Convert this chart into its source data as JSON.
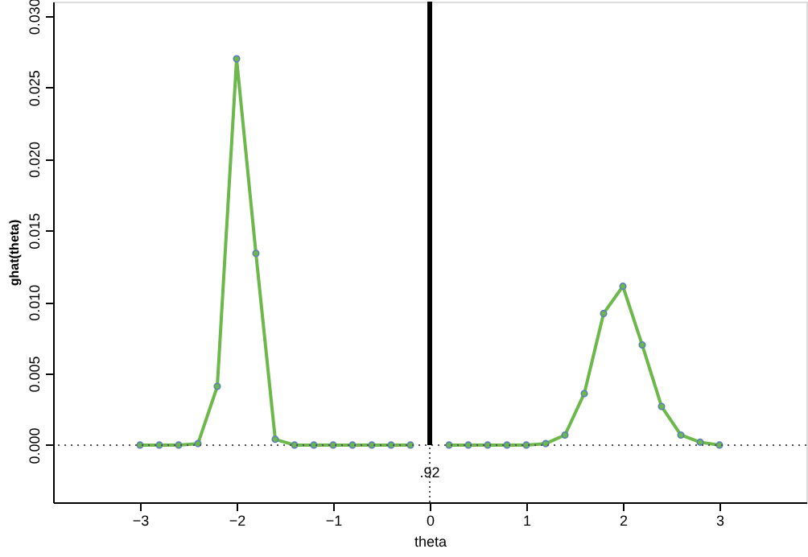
{
  "chart_data": {
    "type": "line",
    "xlabel": "theta",
    "ylabel": "ghat(theta)",
    "series": [
      {
        "color": "#6cb84a",
        "x": [
          -3,
          -2.8,
          -2.6,
          -2.4,
          -2.2,
          -2.0,
          -1.8,
          -1.6,
          -1.4,
          -1.2,
          -1.0,
          -0.8,
          -0.6,
          -0.4,
          -0.2
        ],
        "values": [
          0,
          0,
          0,
          0.0001,
          0.0041,
          0.027,
          0.0134,
          0.0004,
          0,
          0,
          0,
          0,
          0,
          0,
          0
        ]
      },
      {
        "color": "#6cb84a",
        "x": [
          0.2,
          0.4,
          0.6,
          0.8,
          1.0,
          1.2,
          1.4,
          1.6,
          1.8,
          2.0,
          2.2,
          2.4,
          2.6,
          2.8,
          3.0
        ],
        "values": [
          0,
          0,
          0,
          0,
          0,
          0.0001,
          0.0007,
          0.0036,
          0.0092,
          0.0111,
          0.007,
          0.0027,
          0.0007,
          0.0002,
          0
        ]
      }
    ],
    "marker": "circle",
    "line_style": "solid",
    "xlim": [
      -3.9,
      3.9
    ],
    "xticks": [
      -3,
      -2,
      -1,
      0,
      1,
      2,
      3
    ],
    "ylim": [
      -0.004,
      0.031
    ],
    "yticks": [
      {
        "value": 0,
        "label": "0.000"
      },
      {
        "value": 0.005,
        "label": "0.005"
      },
      {
        "value": 0.01,
        "label": "0.010"
      },
      {
        "value": 0.015,
        "label": "0.015"
      },
      {
        "value": 0.02,
        "label": "0.020"
      },
      {
        "value": 0.025,
        "label": "0.025"
      },
      {
        "value": 0.03,
        "label": "0.030"
      }
    ],
    "ref_lines": [
      {
        "axis": "y",
        "value": 0,
        "line_style": "dotted",
        "color": "#555555"
      },
      {
        "axis": "x",
        "value": 0,
        "line_style": "solid",
        "color": "#000000"
      }
    ],
    "annotations": [
      {
        "text": ".92",
        "x": 0,
        "y": 0
      }
    ],
    "grid": false
  }
}
